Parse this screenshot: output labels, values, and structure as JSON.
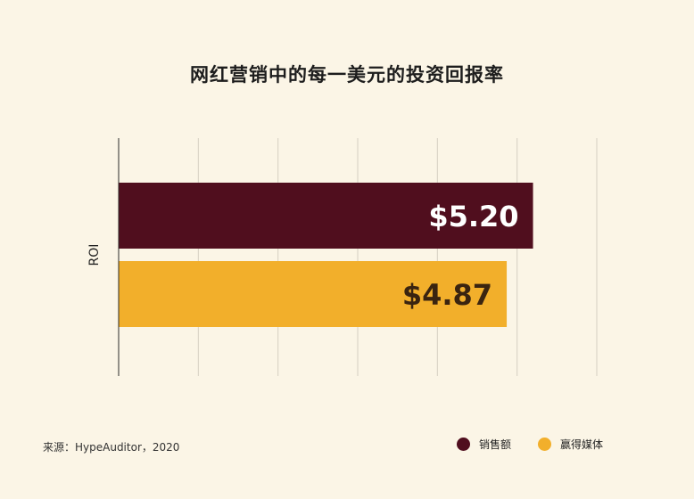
{
  "chart_data": {
    "type": "bar",
    "orientation": "horizontal",
    "title": "网红营销中的每一美元的投资回报率",
    "categories": [
      "ROI"
    ],
    "ylabel": "ROI",
    "xlim": [
      0,
      6
    ],
    "grid": true,
    "legend_position": "bottom-right",
    "series": [
      {
        "name": "销售额",
        "values": [
          5.2
        ],
        "label": "$5.20",
        "color": "#500e1e",
        "label_color": "#ffffff"
      },
      {
        "name": "赢得媒体",
        "values": [
          4.87
        ],
        "label": "$4.87",
        "color": "#f2af2b",
        "label_color": "#3a2410"
      }
    ]
  },
  "footer": {
    "source": "来源：HypeAuditor，2020"
  }
}
